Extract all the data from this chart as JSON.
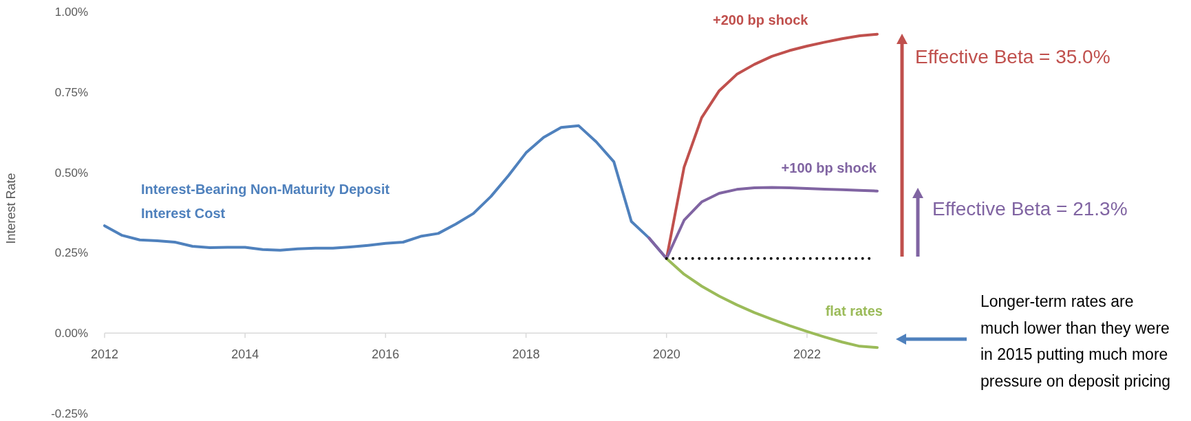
{
  "chart_data": {
    "type": "line",
    "ylabel": "Interest Rate",
    "xlim": [
      2012,
      2023
    ],
    "xticks": [
      2012,
      2014,
      2016,
      2018,
      2020,
      2022
    ],
    "ylim": [
      -0.25,
      1.0
    ],
    "yticks": [
      {
        "value": -0.25,
        "label": "-0.25%"
      },
      {
        "value": 0,
        "label": "0.00%"
      },
      {
        "value": 0.25,
        "label": "0.25%"
      },
      {
        "value": 0.5,
        "label": "0.50%"
      },
      {
        "value": 0.75,
        "label": "0.75%"
      },
      {
        "value": 1.0,
        "label": "1.00%"
      }
    ],
    "series": [
      {
        "name": "Interest-Bearing Non-Maturity Deposit Interest Cost",
        "color": "#4f81bd",
        "x": [
          2012,
          2012.25,
          2012.5,
          2012.75,
          2013,
          2013.25,
          2013.5,
          2013.75,
          2014,
          2014.25,
          2014.5,
          2014.75,
          2015,
          2015.25,
          2015.5,
          2015.75,
          2016,
          2016.25,
          2016.5,
          2016.75,
          2017,
          2017.25,
          2017.5,
          2017.75,
          2018,
          2018.25,
          2018.5,
          2018.75,
          2019,
          2019.25,
          2019.5,
          2019.75,
          2020
        ],
        "values": [
          0.334,
          0.304,
          0.29,
          0.287,
          0.283,
          0.27,
          0.266,
          0.267,
          0.267,
          0.26,
          0.258,
          0.262,
          0.264,
          0.264,
          0.268,
          0.273,
          0.279,
          0.283,
          0.301,
          0.31,
          0.339,
          0.372,
          0.425,
          0.49,
          0.561,
          0.609,
          0.64,
          0.645,
          0.595,
          0.533,
          0.347,
          0.296,
          0.232
        ]
      },
      {
        "name": "+200 bp shock",
        "color": "#c0504d",
        "x": [
          2020,
          2020.25,
          2020.5,
          2020.75,
          2021,
          2021.25,
          2021.5,
          2021.75,
          2022,
          2022.25,
          2022.5,
          2022.75,
          2023
        ],
        "values": [
          0.232,
          0.516,
          0.67,
          0.754,
          0.805,
          0.836,
          0.861,
          0.879,
          0.893,
          0.905,
          0.916,
          0.925,
          0.93
        ]
      },
      {
        "name": "+100 bp shock",
        "color": "#8064a2",
        "x": [
          2019.75,
          2020,
          2020.25,
          2020.5,
          2020.75,
          2021,
          2021.25,
          2021.5,
          2021.75,
          2022,
          2022.25,
          2022.5,
          2022.75,
          2023
        ],
        "values": [
          0.296,
          0.232,
          0.351,
          0.408,
          0.435,
          0.447,
          0.452,
          0.453,
          0.452,
          0.45,
          0.448,
          0.446,
          0.444,
          0.442
        ]
      },
      {
        "name": "flat rates",
        "color": "#9bbb59",
        "x": [
          2020,
          2020.25,
          2020.5,
          2020.75,
          2021,
          2021.25,
          2021.5,
          2021.75,
          2022,
          2022.25,
          2022.5,
          2022.75,
          2023
        ],
        "values": [
          0.232,
          0.183,
          0.146,
          0.115,
          0.088,
          0.064,
          0.043,
          0.023,
          0.005,
          -0.012,
          -0.028,
          -0.041,
          -0.045
        ]
      },
      {
        "color": "#000000",
        "line_style": "dotted",
        "x": [
          2020,
          2022.9
        ],
        "values": [
          0.232,
          0.232
        ]
      }
    ],
    "annotations": [
      "Effective Beta = 35.0%",
      "Effective Beta = 21.3%",
      "Longer-term rates are much lower than they were in 2015 putting much more pressure on deposit pricing"
    ]
  }
}
